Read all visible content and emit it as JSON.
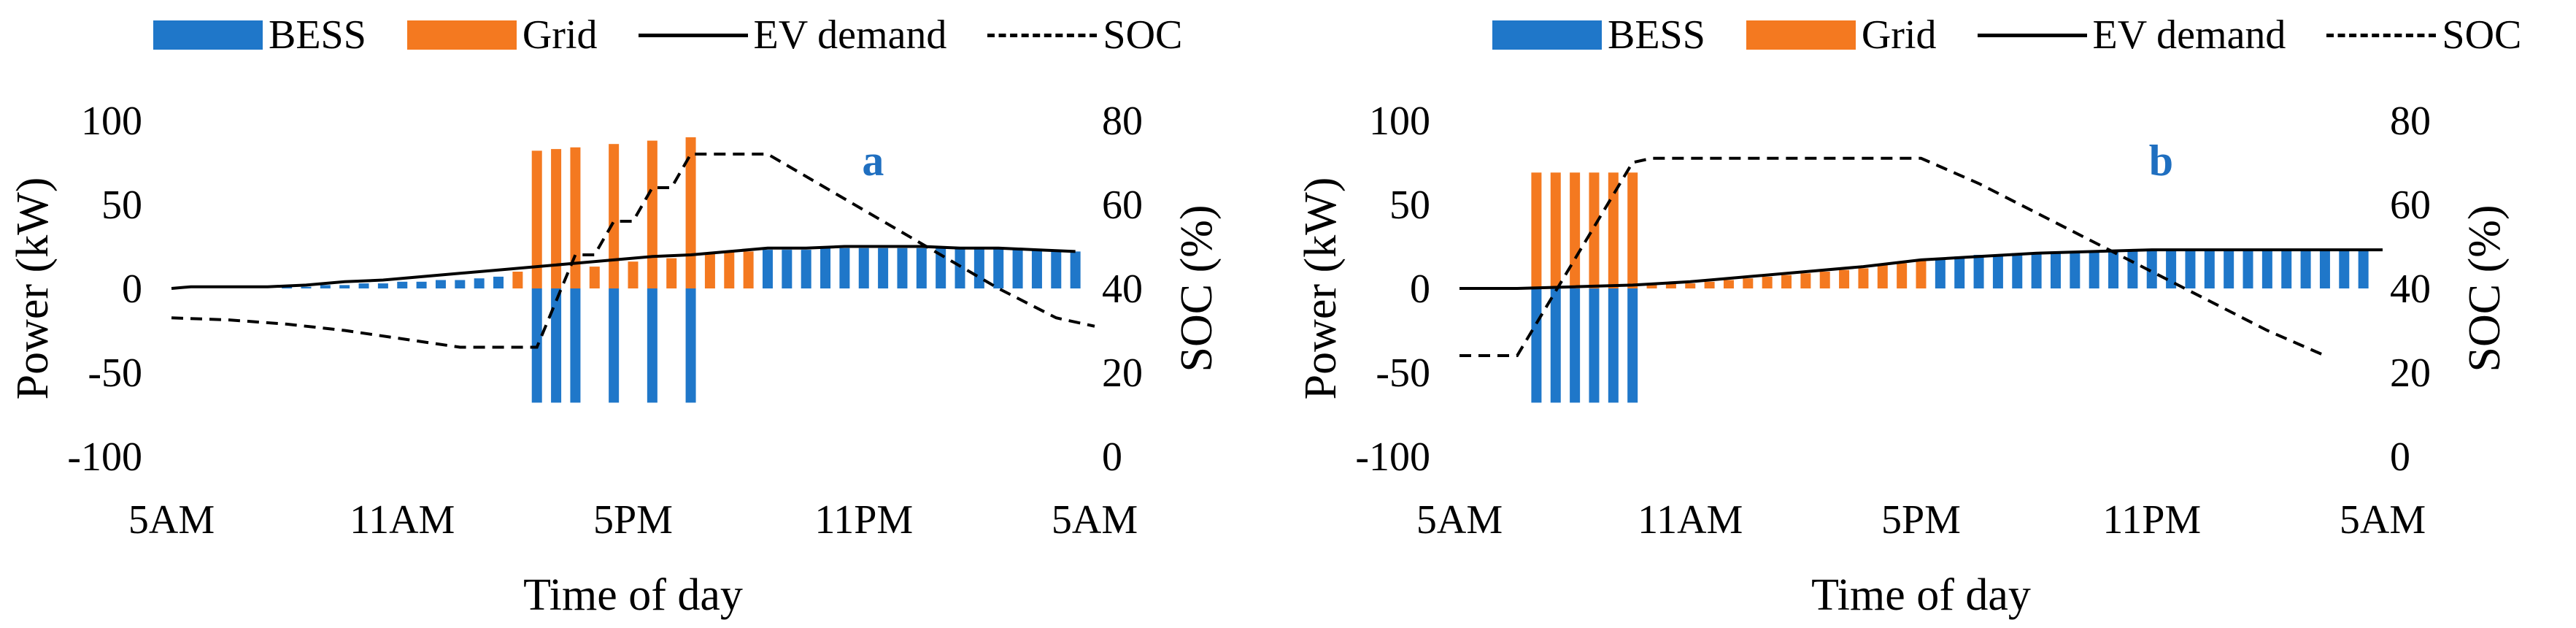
{
  "colors": {
    "bess": "#1f77c9",
    "grid": "#f47920",
    "ev": "#000000",
    "soc": "#000000"
  },
  "legend": {
    "bess": "BESS",
    "grid": "Grid",
    "ev": "EV demand",
    "soc": "SOC"
  },
  "chart_data": [
    {
      "type": "bar",
      "tag": "a",
      "xlabel": "Time of day",
      "ylabel": "Power (kW)",
      "y2label": "SOC (%)",
      "x_ticks": [
        "5AM",
        "11AM",
        "5PM",
        "11PM",
        "5AM"
      ],
      "ylim": [
        -100,
        100
      ],
      "y_ticks": [
        -100,
        -50,
        0,
        50,
        100
      ],
      "y2lim": [
        0,
        80
      ],
      "y2_ticks": [
        0,
        20,
        40,
        60,
        80
      ],
      "x_range": [
        0,
        48
      ],
      "bess": [
        [
          6,
          1
        ],
        [
          7,
          1
        ],
        [
          8,
          2
        ],
        [
          9,
          2
        ],
        [
          10,
          3
        ],
        [
          11,
          3
        ],
        [
          12,
          4
        ],
        [
          13,
          4
        ],
        [
          14,
          5
        ],
        [
          15,
          5
        ],
        [
          16,
          6
        ],
        [
          17,
          7
        ],
        [
          19,
          -68
        ],
        [
          20,
          -68
        ],
        [
          21,
          -68
        ],
        [
          23,
          -68
        ],
        [
          25,
          -68
        ],
        [
          27,
          -68
        ],
        [
          31,
          23
        ],
        [
          32,
          23
        ],
        [
          33,
          23
        ],
        [
          34,
          24
        ],
        [
          35,
          24
        ],
        [
          36,
          24
        ],
        [
          37,
          24
        ],
        [
          38,
          24
        ],
        [
          39,
          24
        ],
        [
          40,
          24
        ],
        [
          41,
          24
        ],
        [
          42,
          24
        ],
        [
          43,
          24
        ],
        [
          44,
          24
        ],
        [
          45,
          23
        ],
        [
          46,
          22
        ],
        [
          47,
          22
        ]
      ],
      "grid": [
        [
          18,
          10
        ],
        [
          19,
          82
        ],
        [
          20,
          83
        ],
        [
          21,
          84
        ],
        [
          22,
          13
        ],
        [
          23,
          86
        ],
        [
          24,
          16
        ],
        [
          25,
          88
        ],
        [
          26,
          18
        ],
        [
          27,
          90
        ],
        [
          28,
          21
        ],
        [
          29,
          22
        ],
        [
          30,
          22
        ]
      ],
      "ev_demand": [
        [
          0,
          0
        ],
        [
          1,
          1
        ],
        [
          3,
          1
        ],
        [
          5,
          1
        ],
        [
          7,
          2
        ],
        [
          9,
          4
        ],
        [
          11,
          5
        ],
        [
          13,
          7
        ],
        [
          15,
          9
        ],
        [
          17,
          11
        ],
        [
          19,
          13
        ],
        [
          21,
          15
        ],
        [
          23,
          17
        ],
        [
          25,
          19
        ],
        [
          27,
          20
        ],
        [
          29,
          22
        ],
        [
          31,
          24
        ],
        [
          33,
          24
        ],
        [
          35,
          25
        ],
        [
          37,
          25
        ],
        [
          39,
          25
        ],
        [
          41,
          24
        ],
        [
          43,
          24
        ],
        [
          45,
          23
        ],
        [
          47,
          22
        ]
      ],
      "soc": [
        [
          0,
          33
        ],
        [
          3,
          32.5
        ],
        [
          6,
          31.5
        ],
        [
          9,
          30
        ],
        [
          12,
          28
        ],
        [
          15,
          26
        ],
        [
          18,
          26
        ],
        [
          19,
          26
        ],
        [
          20,
          37
        ],
        [
          21,
          48
        ],
        [
          22,
          48
        ],
        [
          23,
          56
        ],
        [
          24,
          56
        ],
        [
          25,
          64
        ],
        [
          26,
          64
        ],
        [
          27,
          72
        ],
        [
          29,
          72
        ],
        [
          31,
          72
        ],
        [
          34,
          64
        ],
        [
          37,
          56
        ],
        [
          40,
          48
        ],
        [
          43,
          40
        ],
        [
          46,
          33
        ],
        [
          48,
          31
        ]
      ]
    },
    {
      "type": "bar",
      "tag": "b",
      "xlabel": "Time of day",
      "ylabel": "Power (kW)",
      "y2label": "SOC (%)",
      "x_ticks": [
        "5AM",
        "11AM",
        "5PM",
        "11PM",
        "5AM"
      ],
      "ylim": [
        -100,
        100
      ],
      "y_ticks": [
        -100,
        -50,
        0,
        50,
        100
      ],
      "y2lim": [
        0,
        80
      ],
      "y2_ticks": [
        0,
        20,
        40,
        60,
        80
      ],
      "x_range": [
        0,
        48
      ],
      "bess": [
        [
          4,
          -68
        ],
        [
          5,
          -68
        ],
        [
          6,
          -68
        ],
        [
          7,
          -68
        ],
        [
          8,
          -68
        ],
        [
          9,
          -68
        ],
        [
          25,
          18
        ],
        [
          26,
          19
        ],
        [
          27,
          20
        ],
        [
          28,
          20
        ],
        [
          29,
          21
        ],
        [
          30,
          21
        ],
        [
          31,
          22
        ],
        [
          32,
          22
        ],
        [
          33,
          22
        ],
        [
          34,
          23
        ],
        [
          35,
          23
        ],
        [
          36,
          23
        ],
        [
          37,
          23
        ],
        [
          38,
          23
        ],
        [
          39,
          23
        ],
        [
          40,
          23
        ],
        [
          41,
          23
        ],
        [
          42,
          23
        ],
        [
          43,
          23
        ],
        [
          44,
          23
        ],
        [
          45,
          23
        ],
        [
          46,
          23
        ],
        [
          47,
          23
        ]
      ],
      "grid": [
        [
          4,
          69
        ],
        [
          5,
          69
        ],
        [
          6,
          69
        ],
        [
          7,
          69
        ],
        [
          8,
          69
        ],
        [
          9,
          69
        ],
        [
          10,
          2
        ],
        [
          11,
          3
        ],
        [
          12,
          3
        ],
        [
          13,
          4
        ],
        [
          14,
          5
        ],
        [
          15,
          6
        ],
        [
          16,
          7
        ],
        [
          17,
          8
        ],
        [
          18,
          9
        ],
        [
          19,
          10
        ],
        [
          20,
          11
        ],
        [
          21,
          12
        ],
        [
          22,
          14
        ],
        [
          23,
          15
        ],
        [
          24,
          17
        ]
      ],
      "ev_demand": [
        [
          0,
          0
        ],
        [
          3,
          0
        ],
        [
          6,
          1
        ],
        [
          9,
          2
        ],
        [
          12,
          4
        ],
        [
          15,
          7
        ],
        [
          18,
          10
        ],
        [
          21,
          13
        ],
        [
          24,
          17
        ],
        [
          27,
          19
        ],
        [
          30,
          21
        ],
        [
          33,
          22
        ],
        [
          36,
          23
        ],
        [
          39,
          23
        ],
        [
          42,
          23
        ],
        [
          45,
          23
        ],
        [
          48,
          23
        ]
      ],
      "soc": [
        [
          0,
          24
        ],
        [
          3,
          24
        ],
        [
          9,
          70
        ],
        [
          10,
          71
        ],
        [
          17,
          71
        ],
        [
          24,
          71
        ],
        [
          27,
          65
        ],
        [
          30,
          58
        ],
        [
          33,
          51
        ],
        [
          36,
          44
        ],
        [
          39,
          37
        ],
        [
          42,
          30
        ],
        [
          45,
          24
        ]
      ]
    }
  ]
}
